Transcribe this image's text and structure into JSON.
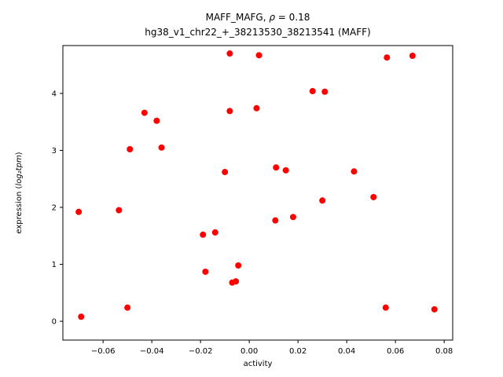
{
  "title": {
    "line1_pre": "MAFF_MAFG, ",
    "line1_math": "ρ",
    "line1_post": " = 0.18",
    "line2": "hg38_v1_chr22_+_38213530_38213541 (MAFF)"
  },
  "chart_data": {
    "type": "scatter",
    "title": "MAFF_MAFG, ρ = 0.18",
    "subtitle": "hg38_v1_chr22_+_38213530_38213541 (MAFF)",
    "xlabel": "activity",
    "ylabel_pre": "expression (",
    "ylabel_math": "log₂tpm",
    "ylabel_post": ")",
    "xlim": [
      -0.0765,
      0.0835
    ],
    "ylim": [
      -0.33,
      4.84
    ],
    "xticks": [
      {
        "v": -0.06,
        "label": "−0.06"
      },
      {
        "v": -0.04,
        "label": "−0.04"
      },
      {
        "v": -0.02,
        "label": "−0.02"
      },
      {
        "v": 0.0,
        "label": "0.00"
      },
      {
        "v": 0.02,
        "label": "0.02"
      },
      {
        "v": 0.04,
        "label": "0.04"
      },
      {
        "v": 0.06,
        "label": "0.06"
      },
      {
        "v": 0.08,
        "label": "0.08"
      }
    ],
    "yticks": [
      {
        "v": 0,
        "label": "0"
      },
      {
        "v": 1,
        "label": "1"
      },
      {
        "v": 2,
        "label": "2"
      },
      {
        "v": 3,
        "label": "3"
      },
      {
        "v": 4,
        "label": "4"
      }
    ],
    "grid": false,
    "legend": "none",
    "point_color": "#ff0000",
    "point_radius": 4,
    "points": [
      [
        -0.069,
        0.08
      ],
      [
        -0.07,
        1.92
      ],
      [
        -0.0535,
        1.95
      ],
      [
        -0.05,
        0.24
      ],
      [
        -0.049,
        3.02
      ],
      [
        -0.043,
        3.66
      ],
      [
        -0.038,
        3.52
      ],
      [
        -0.036,
        3.05
      ],
      [
        -0.019,
        1.52
      ],
      [
        -0.018,
        0.87
      ],
      [
        -0.014,
        1.56
      ],
      [
        -0.01,
        2.62
      ],
      [
        -0.008,
        3.69
      ],
      [
        -0.008,
        4.7
      ],
      [
        -0.007,
        0.68
      ],
      [
        -0.0055,
        0.7
      ],
      [
        -0.0045,
        0.98
      ],
      [
        0.003,
        3.74
      ],
      [
        0.004,
        4.67
      ],
      [
        0.0107,
        1.77
      ],
      [
        0.011,
        2.7
      ],
      [
        0.015,
        2.65
      ],
      [
        0.018,
        1.83
      ],
      [
        0.026,
        4.04
      ],
      [
        0.03,
        2.12
      ],
      [
        0.031,
        4.03
      ],
      [
        0.043,
        2.63
      ],
      [
        0.051,
        2.18
      ],
      [
        0.056,
        0.24
      ],
      [
        0.0565,
        4.63
      ],
      [
        0.067,
        4.66
      ],
      [
        0.076,
        0.21
      ]
    ]
  }
}
